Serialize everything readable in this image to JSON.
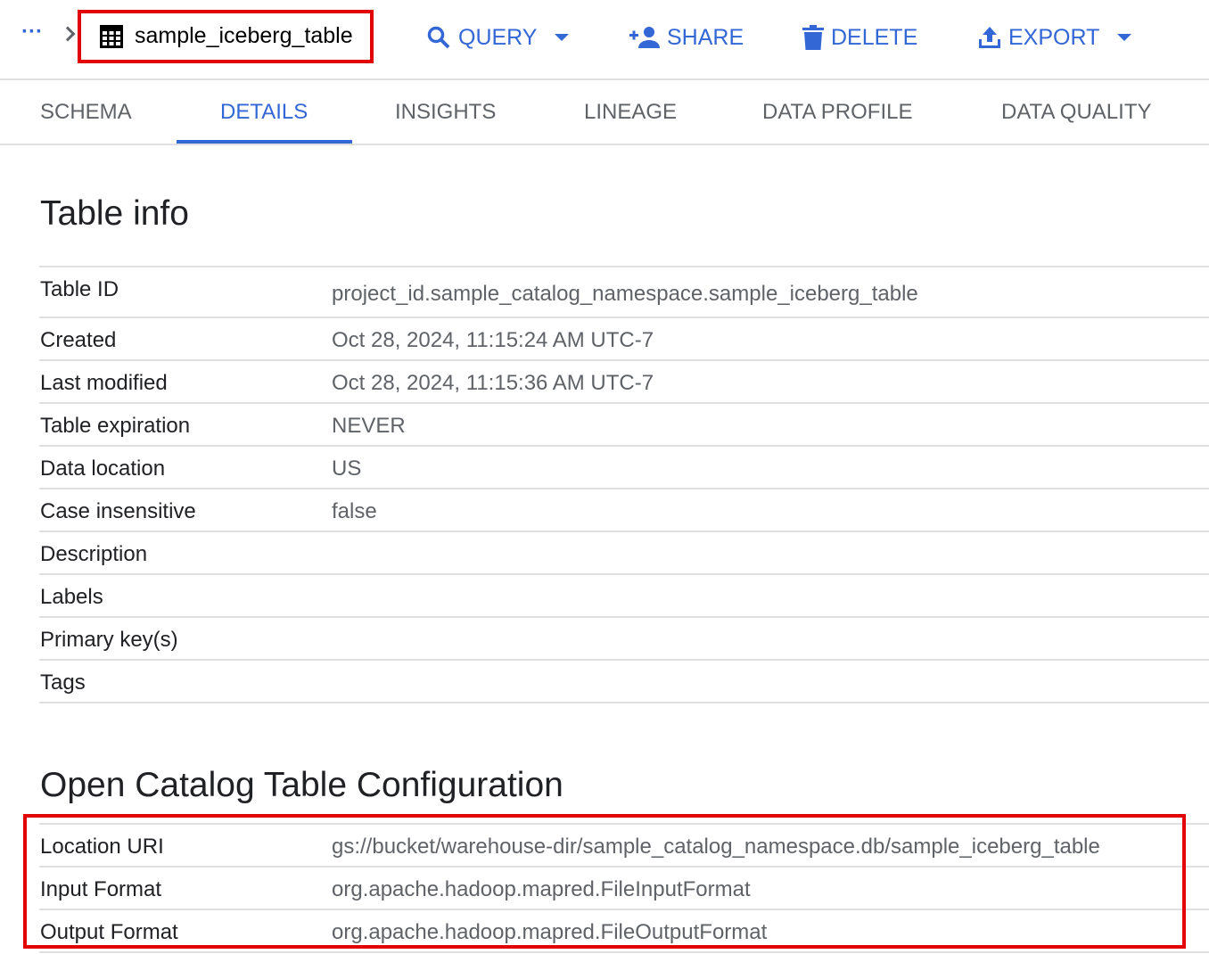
{
  "header": {
    "breadcrumb_more": "···",
    "table_name": "sample_iceberg_table",
    "actions": {
      "query": "QUERY",
      "share": "SHARE",
      "delete": "DELETE",
      "export": "EXPORT"
    }
  },
  "tabs": [
    {
      "label": "SCHEMA",
      "active": false
    },
    {
      "label": "DETAILS",
      "active": true
    },
    {
      "label": "INSIGHTS",
      "active": false
    },
    {
      "label": "LINEAGE",
      "active": false
    },
    {
      "label": "DATA PROFILE",
      "active": false
    },
    {
      "label": "DATA QUALITY",
      "active": false
    }
  ],
  "table_info": {
    "title": "Table info",
    "rows": [
      {
        "label": "Table ID",
        "value": "project_id.sample_catalog_namespace.sample_iceberg_table"
      },
      {
        "label": "Created",
        "value": "Oct 28, 2024, 11:15:24 AM UTC-7"
      },
      {
        "label": "Last modified",
        "value": "Oct 28, 2024, 11:15:36 AM UTC-7"
      },
      {
        "label": "Table expiration",
        "value": "NEVER"
      },
      {
        "label": "Data location",
        "value": "US"
      },
      {
        "label": "Case insensitive",
        "value": "false"
      },
      {
        "label": "Description",
        "value": ""
      },
      {
        "label": "Labels",
        "value": ""
      },
      {
        "label": "Primary key(s)",
        "value": ""
      },
      {
        "label": "Tags",
        "value": ""
      }
    ]
  },
  "open_catalog": {
    "title": "Open Catalog Table Configuration",
    "rows": [
      {
        "label": "Location URI",
        "value": "gs://bucket/warehouse-dir/sample_catalog_namespace.db/sample_iceberg_table"
      },
      {
        "label": "Input Format",
        "value": "org.apache.hadoop.mapred.FileInputFormat"
      },
      {
        "label": "Output Format",
        "value": "org.apache.hadoop.mapred.FileOutputFormat"
      }
    ]
  },
  "colors": {
    "accent": "#3367d6",
    "highlight": "#e30000",
    "text": "#202124",
    "muted": "#5f6368"
  }
}
